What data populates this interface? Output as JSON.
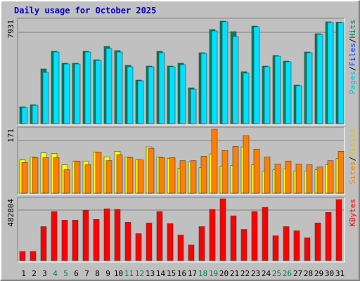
{
  "chart_data": [
    {
      "type": "bar",
      "title": "Daily usage for October 2025",
      "ylim": [
        0,
        7931
      ],
      "yticks": [
        7931
      ],
      "grid": true,
      "legend": [
        {
          "label": "Pages",
          "color": "#00c8d8"
        },
        {
          "label": "/",
          "color": "#000000"
        },
        {
          "label": "Files",
          "color": "#0040ff"
        },
        {
          "label": "/",
          "color": "#000000"
        },
        {
          "label": "Hits",
          "color": "#00805c"
        }
      ],
      "series": [
        {
          "color": "#00805c",
          "values": [
            1304,
            1467,
            4237,
            5595,
            4672,
            4672,
            5595,
            4943,
            5975,
            5649,
            4509,
            3368,
            4455,
            5595,
            4455,
            4672,
            2770,
            5486,
            7279,
            7931,
            7116,
            4020,
            7550,
            4455,
            5269,
            4835,
            2987,
            5541,
            6953,
            7877,
            7850
          ]
        },
        {
          "color": "#00e0ff",
          "values": [
            1249,
            1412,
            3966,
            5541,
            4617,
            4617,
            5541,
            4889,
            5812,
            5541,
            4400,
            3314,
            4400,
            5486,
            4400,
            4563,
            2662,
            5432,
            7171,
            7877,
            6736,
            3911,
            7496,
            4400,
            5215,
            4780,
            2933,
            5486,
            6899,
            7823,
            7796
          ]
        }
      ]
    },
    {
      "type": "bar",
      "ylim": [
        0,
        171
      ],
      "yticks": [
        171
      ],
      "grid": true,
      "legend": [
        {
          "label": "Sites",
          "color": "#ff8000"
        },
        {
          "label": "/",
          "color": "#000000"
        },
        {
          "label": "Visits",
          "color": "#e0c000"
        }
      ],
      "series": [
        {
          "color": "#ffff00",
          "values": [
            89,
            97,
            108,
            106,
            76,
            86,
            86,
            110,
            97,
            112,
            97,
            89,
            124,
            97,
            93,
            67,
            84,
            68,
            105,
            72,
            74,
            124,
            76,
            59,
            63,
            65,
            59,
            59,
            63,
            76,
            93
          ]
        },
        {
          "color": "#ff8000",
          "values": [
            82,
            95,
            95,
            95,
            63,
            86,
            76,
            110,
            87,
            103,
            95,
            89,
            120,
            95,
            95,
            87,
            87,
            99,
            171,
            114,
            125,
            154,
            118,
            97,
            78,
            86,
            78,
            76,
            70,
            87,
            112
          ]
        }
      ]
    },
    {
      "type": "bar",
      "ylim": [
        0,
        482804
      ],
      "yticks": [
        482804
      ],
      "grid": true,
      "legend": [
        {
          "label": "KBytes",
          "color": "#ff0000"
        }
      ],
      "series": [
        {
          "color": "#ff0000",
          "values": [
            72000,
            72000,
            266000,
            383000,
            316000,
            316000,
            394000,
            322000,
            405000,
            400000,
            300000,
            211000,
            294000,
            383000,
            289000,
            200000,
            122000,
            266000,
            400000,
            482804,
            350000,
            244000,
            383000,
            416000,
            194000,
            266000,
            233000,
            178000,
            294000,
            377000,
            477000
          ]
        }
      ],
      "categories": [
        "1",
        "2",
        "3",
        "4",
        "5",
        "6",
        "7",
        "8",
        "9",
        "10",
        "11",
        "12",
        "13",
        "14",
        "15",
        "16",
        "17",
        "18",
        "19",
        "20",
        "21",
        "22",
        "23",
        "24",
        "25",
        "26",
        "27",
        "28",
        "29",
        "30",
        "31"
      ],
      "category_colors": [
        "#000000",
        "#000000",
        "#000000",
        "#00805c",
        "#00805c",
        "#000000",
        "#000000",
        "#000000",
        "#000000",
        "#000000",
        "#00805c",
        "#00805c",
        "#000000",
        "#000000",
        "#000000",
        "#000000",
        "#000000",
        "#00805c",
        "#00805c",
        "#000000",
        "#000000",
        "#000000",
        "#000000",
        "#000000",
        "#00805c",
        "#00805c",
        "#000000",
        "#000000",
        "#000000",
        "#000000",
        "#000000"
      ]
    }
  ]
}
